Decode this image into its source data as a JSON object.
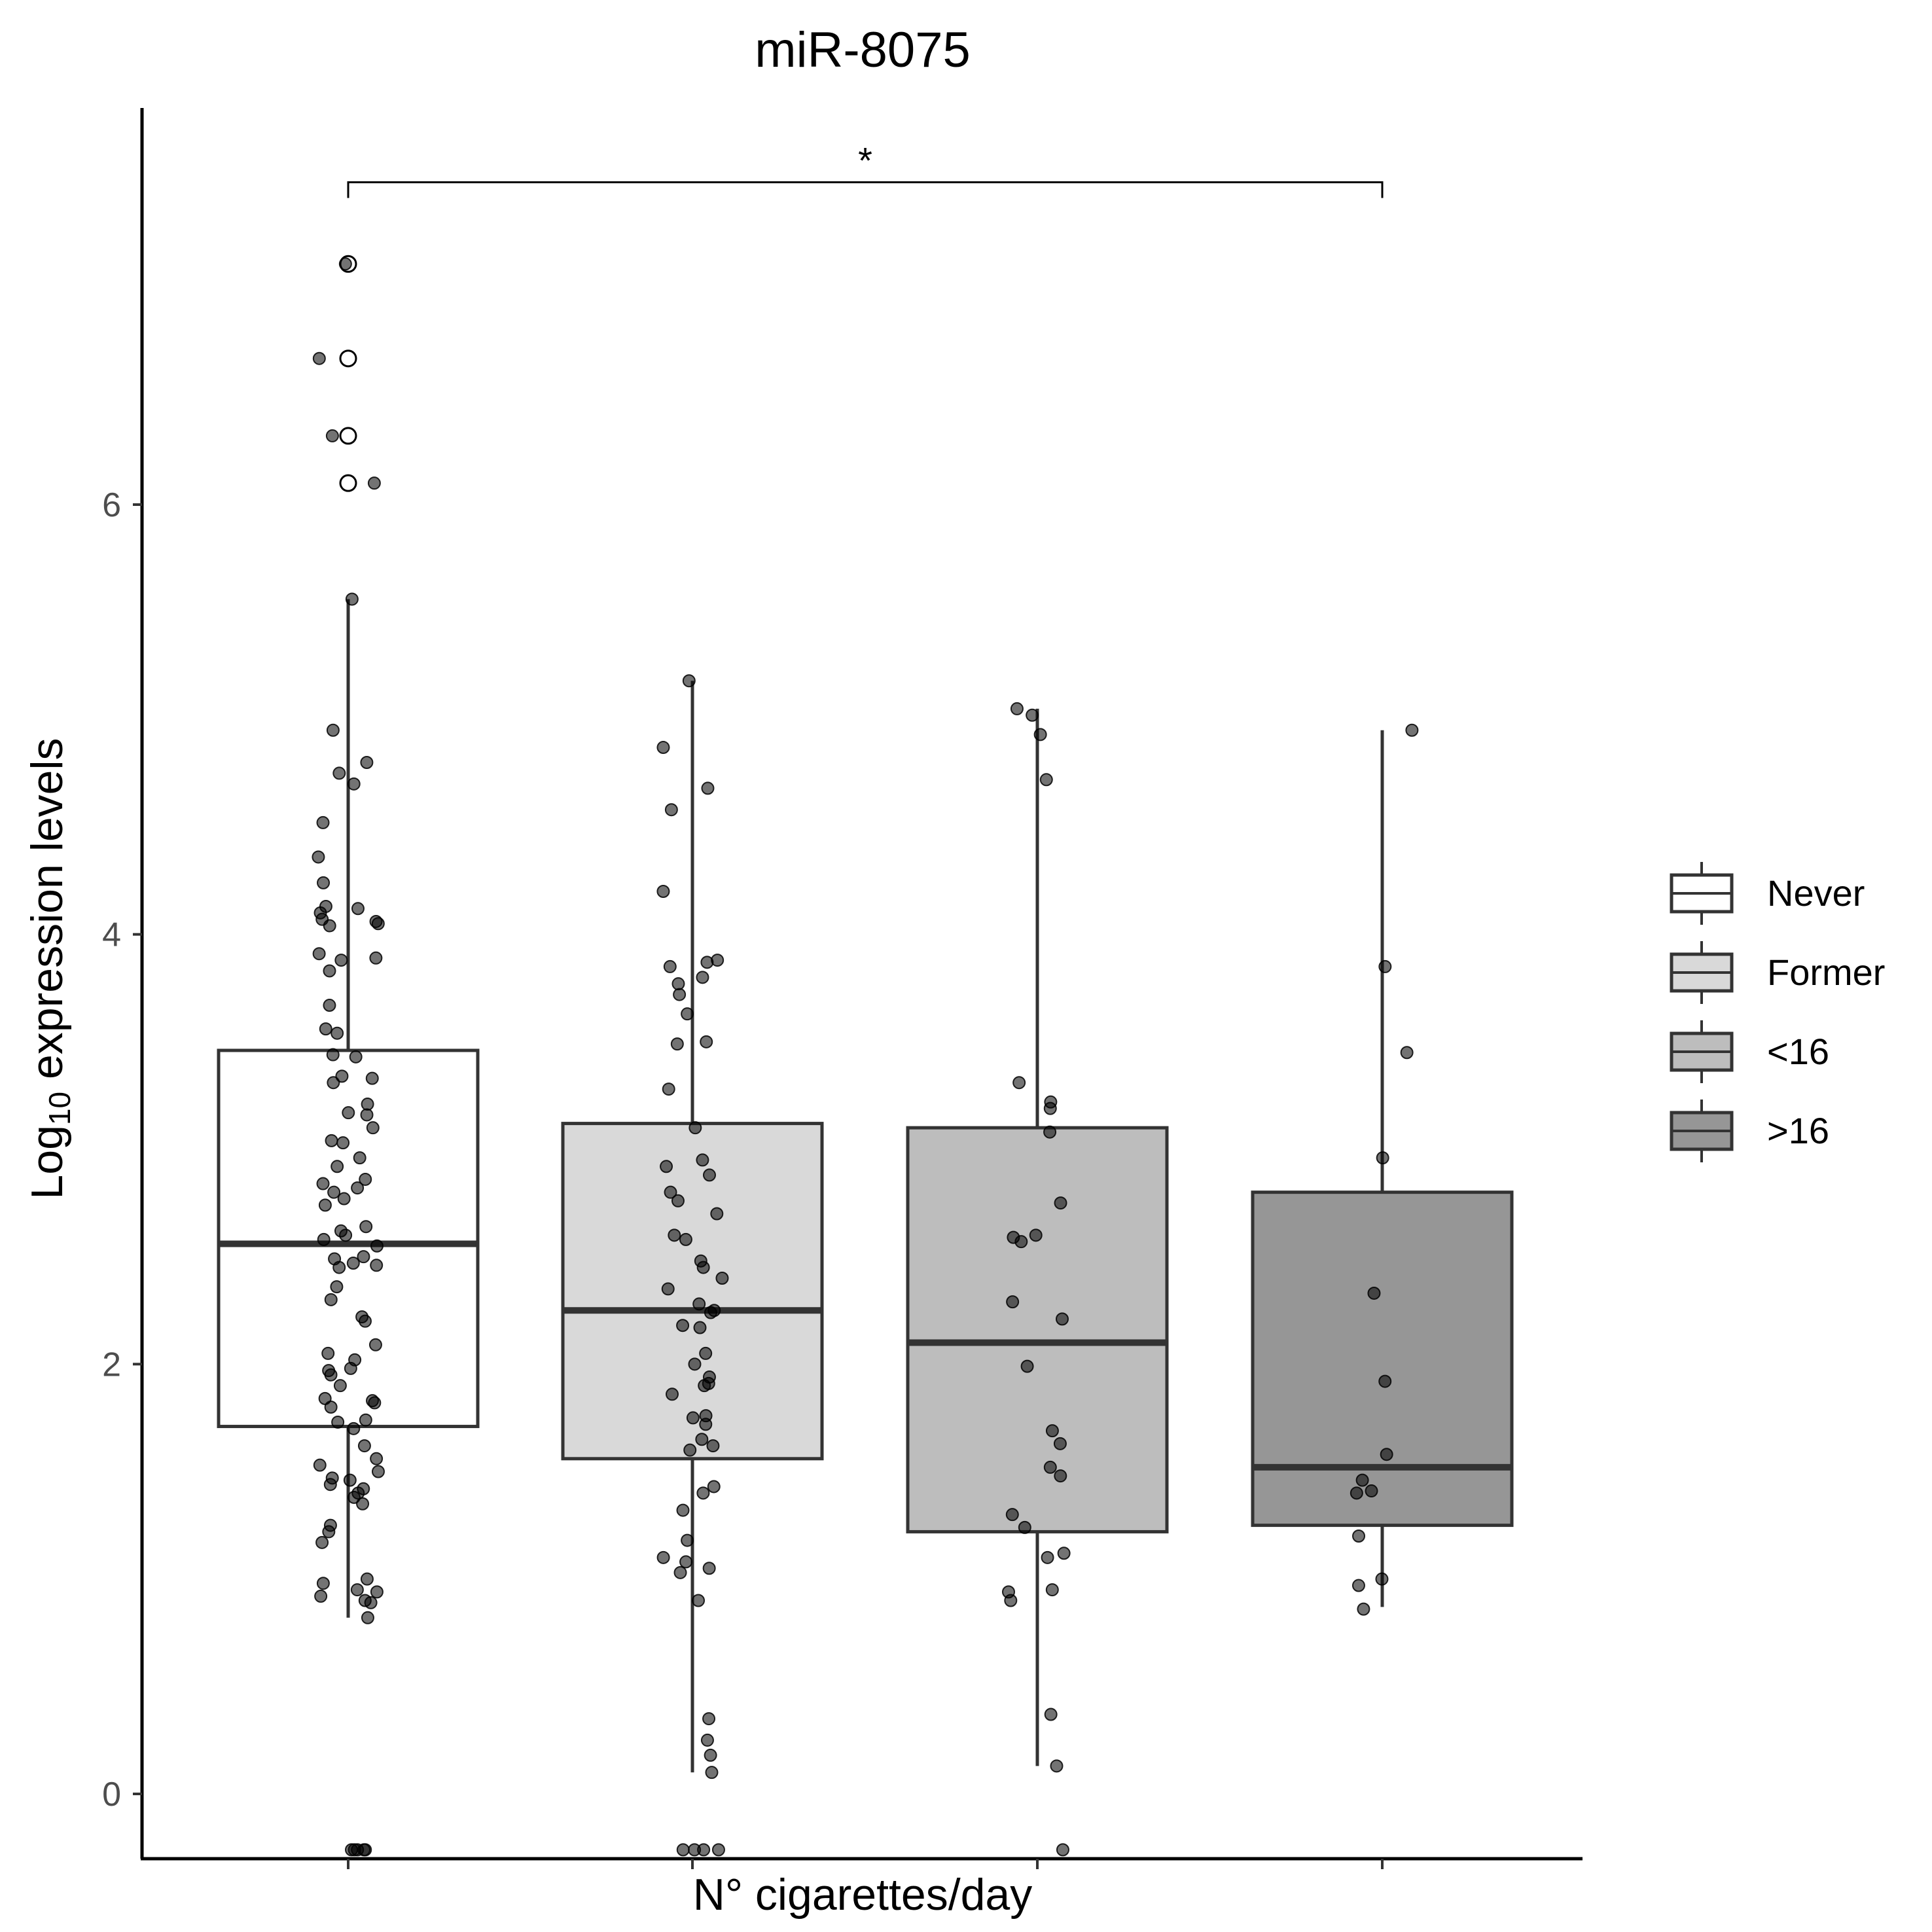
{
  "chart_data": {
    "type": "boxplot",
    "title": "miR-8075",
    "xlabel": "N° cigarettes/day",
    "ylabel_main": "Log",
    "ylabel_sub": "10",
    "ylabel_rest": " expression levels",
    "ylim": [
      -0.28,
      7.85
    ],
    "yticks": [
      0,
      2,
      4,
      6
    ],
    "grid": false,
    "legend_position": "right",
    "legend": [
      {
        "label": "Never",
        "color": "#ffffff"
      },
      {
        "label": "Former",
        "color": "#d9d9d9"
      },
      {
        "label": "<16",
        "color": "#bdbdbd"
      },
      {
        "label": ">16",
        "color": "#969696"
      }
    ],
    "groups": [
      {
        "name": "Never",
        "fill": "#ffffff",
        "stats": {
          "lower_whisker": 0.82,
          "q1": 1.71,
          "median": 2.56,
          "q3": 3.46,
          "upper_whisker": 5.56
        },
        "outliers": [
          7.12,
          6.68,
          6.32,
          6.1
        ],
        "points": [
          7.12,
          6.68,
          6.32,
          6.1,
          5.56,
          4.95,
          4.8,
          4.75,
          4.7,
          4.52,
          4.36,
          4.24,
          4.13,
          4.12,
          4.1,
          4.07,
          4.06,
          4.05,
          4.04,
          3.91,
          3.89,
          3.88,
          3.83,
          3.67,
          3.56,
          3.54,
          3.44,
          3.43,
          3.34,
          3.33,
          3.31,
          3.21,
          3.17,
          3.16,
          3.1,
          3.04,
          3.03,
          2.96,
          2.92,
          2.86,
          2.84,
          2.82,
          2.8,
          2.77,
          2.74,
          2.64,
          2.62,
          2.6,
          2.58,
          2.55,
          2.5,
          2.49,
          2.47,
          2.46,
          2.45,
          2.36,
          2.3,
          2.22,
          2.2,
          2.09,
          2.05,
          2.02,
          1.98,
          1.97,
          1.95,
          1.9,
          1.84,
          1.83,
          1.82,
          1.8,
          1.74,
          1.73,
          1.7,
          1.62,
          1.56,
          1.53,
          1.5,
          1.47,
          1.46,
          1.44,
          1.42,
          1.4,
          1.38,
          1.35,
          1.25,
          1.22,
          1.17,
          1.0,
          0.98,
          0.95,
          0.94,
          0.92,
          0.9,
          0.89,
          0.82,
          -0.26,
          -0.26,
          -0.26,
          -0.26,
          -0.26
        ]
      },
      {
        "name": "Former",
        "fill": "#d9d9d9",
        "stats": {
          "lower_whisker": 0.1,
          "q1": 1.56,
          "median": 2.25,
          "q3": 3.12,
          "upper_whisker": 5.18
        },
        "outliers": [],
        "points": [
          5.18,
          4.87,
          4.68,
          4.58,
          4.2,
          3.88,
          3.87,
          3.85,
          3.8,
          3.77,
          3.72,
          3.63,
          3.5,
          3.49,
          3.28,
          3.1,
          2.95,
          2.92,
          2.88,
          2.8,
          2.76,
          2.7,
          2.6,
          2.58,
          2.48,
          2.45,
          2.4,
          2.35,
          2.28,
          2.25,
          2.24,
          2.18,
          2.17,
          2.05,
          2.0,
          1.94,
          1.91,
          1.9,
          1.86,
          1.76,
          1.75,
          1.72,
          1.65,
          1.62,
          1.6,
          1.43,
          1.4,
          1.32,
          1.18,
          1.1,
          1.08,
          1.05,
          1.03,
          0.9,
          0.35,
          0.25,
          0.18,
          0.1,
          -0.26,
          -0.26,
          -0.26,
          -0.26
        ]
      },
      {
        "name": "<16",
        "fill": "#bdbdbd",
        "stats": {
          "lower_whisker": 0.13,
          "q1": 1.22,
          "median": 2.1,
          "q3": 3.1,
          "upper_whisker": 5.05
        },
        "outliers": [],
        "points": [
          5.05,
          5.02,
          4.93,
          4.72,
          3.31,
          3.22,
          3.19,
          3.08,
          2.75,
          2.6,
          2.59,
          2.57,
          2.29,
          2.21,
          1.99,
          1.69,
          1.63,
          1.52,
          1.48,
          1.3,
          1.24,
          1.12,
          1.1,
          0.95,
          0.94,
          0.9,
          0.37,
          0.13,
          -0.26
        ]
      },
      {
        "name": ">16",
        "fill": "#969696",
        "stats": {
          "lower_whisker": 0.87,
          "q1": 1.25,
          "median": 1.52,
          "q3": 2.8,
          "upper_whisker": 4.95
        },
        "outliers": [],
        "points": [
          4.95,
          3.85,
          3.45,
          2.96,
          2.33,
          1.92,
          1.58,
          1.46,
          1.41,
          1.4,
          1.2,
          1.0,
          0.97,
          0.86
        ]
      }
    ],
    "significance": {
      "from_group": 0,
      "to_group": 3,
      "label": "*",
      "y": 7.5
    }
  }
}
